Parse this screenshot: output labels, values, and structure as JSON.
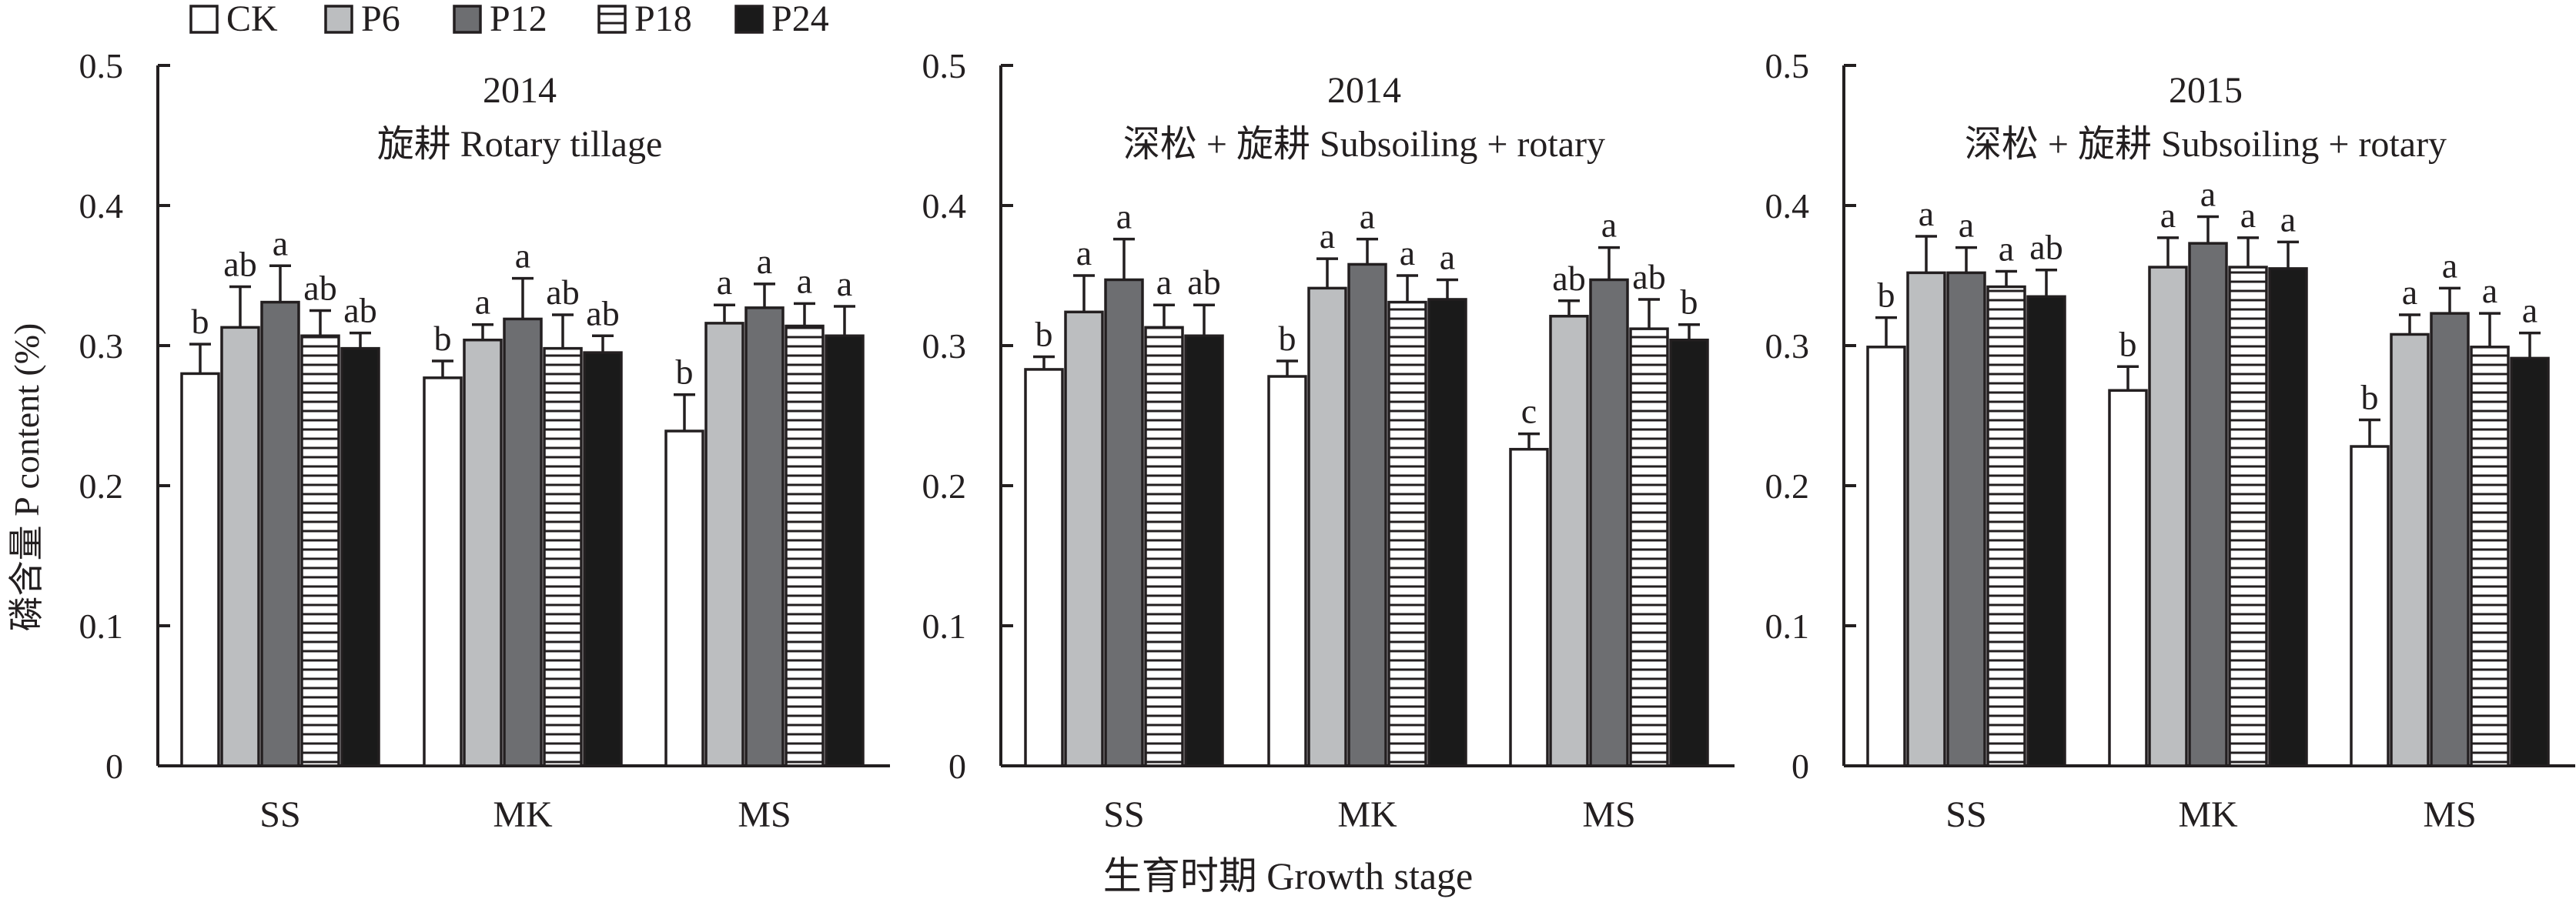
{
  "chart_data": {
    "type": "bar",
    "ylabel": "磷含量 P content (%)",
    "xlabel": "生育时期 Growth stage",
    "ylim": [
      0,
      0.5
    ],
    "yticks": [
      0,
      0.1,
      0.2,
      0.3,
      0.4,
      0.5
    ],
    "ytick_labels": [
      "0",
      "0.1",
      "0.2",
      "0.3",
      "0.4",
      "0.5"
    ],
    "legend": {
      "position": "top-left",
      "entries": [
        {
          "name": "CK",
          "fill": "white"
        },
        {
          "name": "P6",
          "fill": "light-gray"
        },
        {
          "name": "P12",
          "fill": "dark-gray"
        },
        {
          "name": "P18",
          "fill": "horizontal-lines"
        },
        {
          "name": "P24",
          "fill": "black"
        }
      ]
    },
    "series_styles": {
      "CK": "#ffffff",
      "P6": "#bcbec0",
      "P12": "#6d6e71",
      "P18": "hatch",
      "P24": "#1a1a1a"
    },
    "panels": [
      {
        "year": "2014",
        "title": "旋耕 Rotary tillage",
        "categories": [
          "SS",
          "MK",
          "MS"
        ],
        "series": [
          {
            "name": "CK",
            "values": [
              0.28,
              0.277,
              0.239
            ],
            "errors": [
              0.021,
              0.012,
              0.026
            ],
            "letters": [
              "b",
              "b",
              "b"
            ]
          },
          {
            "name": "P6",
            "values": [
              0.313,
              0.304,
              0.316
            ],
            "errors": [
              0.029,
              0.011,
              0.013
            ],
            "letters": [
              "ab",
              "a",
              "a"
            ]
          },
          {
            "name": "P12",
            "values": [
              0.331,
              0.319,
              0.327
            ],
            "errors": [
              0.026,
              0.029,
              0.017
            ],
            "letters": [
              "a",
              "a",
              "a"
            ]
          },
          {
            "name": "P18",
            "values": [
              0.307,
              0.298,
              0.314
            ],
            "errors": [
              0.018,
              0.024,
              0.016
            ],
            "letters": [
              "ab",
              "ab",
              "a"
            ]
          },
          {
            "name": "P24",
            "values": [
              0.298,
              0.295,
              0.307
            ],
            "errors": [
              0.011,
              0.012,
              0.021
            ],
            "letters": [
              "ab",
              "ab",
              "a"
            ]
          }
        ]
      },
      {
        "year": "2014",
        "title": "深松 + 旋耕 Subsoiling + rotary",
        "categories": [
          "SS",
          "MK",
          "MS"
        ],
        "series": [
          {
            "name": "CK",
            "values": [
              0.283,
              0.278,
              0.226
            ],
            "errors": [
              0.009,
              0.011,
              0.011
            ],
            "letters": [
              "b",
              "b",
              "c"
            ]
          },
          {
            "name": "P6",
            "values": [
              0.324,
              0.341,
              0.321
            ],
            "errors": [
              0.026,
              0.021,
              0.011
            ],
            "letters": [
              "a",
              "a",
              "ab"
            ]
          },
          {
            "name": "P12",
            "values": [
              0.347,
              0.358,
              0.347
            ],
            "errors": [
              0.029,
              0.018,
              0.023
            ],
            "letters": [
              "a",
              "a",
              "a"
            ]
          },
          {
            "name": "P18",
            "values": [
              0.313,
              0.331,
              0.312
            ],
            "errors": [
              0.016,
              0.019,
              0.021
            ],
            "letters": [
              "a",
              "a",
              "ab"
            ]
          },
          {
            "name": "P24",
            "values": [
              0.307,
              0.333,
              0.304
            ],
            "errors": [
              0.022,
              0.014,
              0.011
            ],
            "letters": [
              "ab",
              "a",
              "b"
            ]
          }
        ]
      },
      {
        "year": "2015",
        "title": "深松 + 旋耕 Subsoiling + rotary",
        "categories": [
          "SS",
          "MK",
          "MS"
        ],
        "series": [
          {
            "name": "CK",
            "values": [
              0.299,
              0.268,
              0.228
            ],
            "errors": [
              0.021,
              0.017,
              0.019
            ],
            "letters": [
              "b",
              "b",
              "b"
            ]
          },
          {
            "name": "P6",
            "values": [
              0.352,
              0.356,
              0.308
            ],
            "errors": [
              0.026,
              0.021,
              0.014
            ],
            "letters": [
              "a",
              "a",
              "a"
            ]
          },
          {
            "name": "P12",
            "values": [
              0.352,
              0.373,
              0.323
            ],
            "errors": [
              0.018,
              0.019,
              0.018
            ],
            "letters": [
              "a",
              "a",
              "a"
            ]
          },
          {
            "name": "P18",
            "values": [
              0.342,
              0.356,
              0.299
            ],
            "errors": [
              0.011,
              0.021,
              0.024
            ],
            "letters": [
              "a",
              "a",
              "a"
            ]
          },
          {
            "name": "P24",
            "values": [
              0.335,
              0.355,
              0.291
            ],
            "errors": [
              0.019,
              0.019,
              0.018
            ],
            "letters": [
              "ab",
              "a",
              "a"
            ]
          }
        ]
      }
    ]
  }
}
